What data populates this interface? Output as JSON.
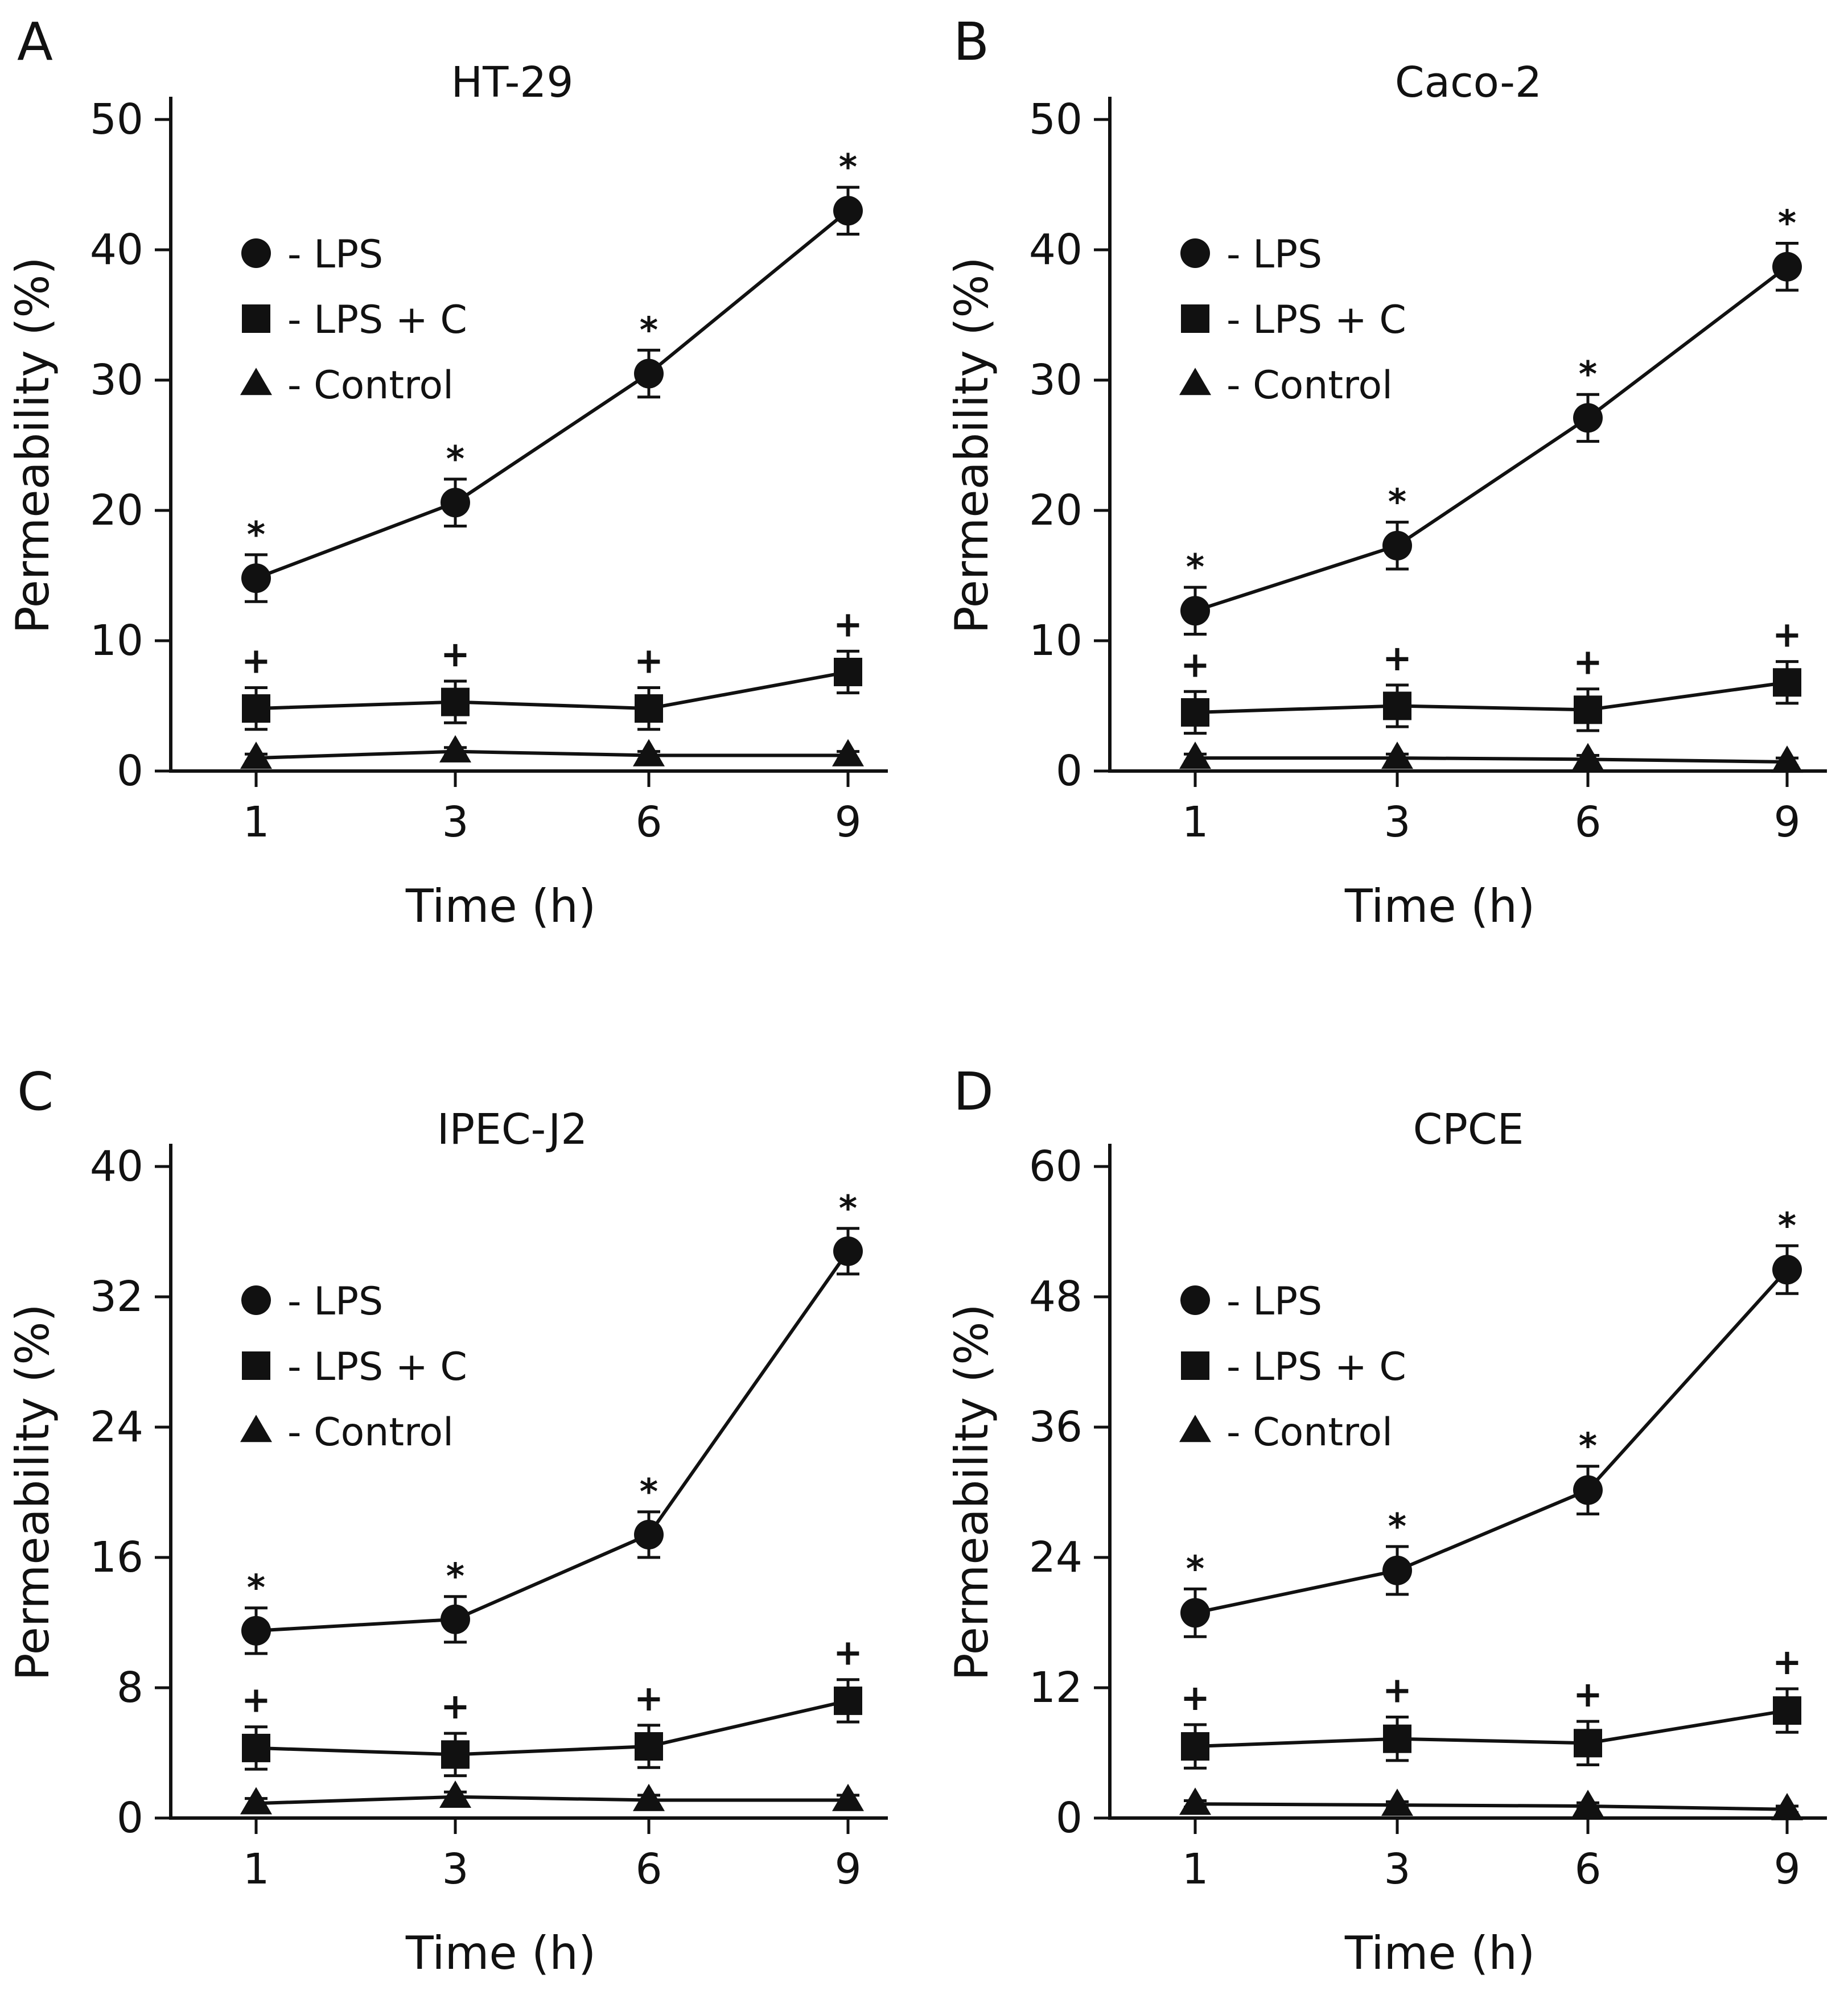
{
  "figure": {
    "panels": [
      "A",
      "B",
      "C",
      "D"
    ]
  },
  "chart_data": [
    {
      "panel": "A",
      "type": "line",
      "title": "HT-29",
      "xlabel": "Time (h)",
      "ylabel": "Permeability (%)",
      "categories": [
        "1",
        "3",
        "6",
        "9"
      ],
      "ylim": [
        0,
        50
      ],
      "yticks": [
        "0",
        "10",
        "20",
        "30",
        "40",
        "50"
      ],
      "legend_position": "upper-left",
      "series": [
        {
          "name": "- LPS",
          "marker": "circle",
          "values": [
            14.8,
            20.6,
            30.5,
            43.0
          ],
          "errors": [
            1.8,
            1.8,
            1.8,
            1.8
          ],
          "marks": [
            "*",
            "*",
            "*",
            "*"
          ]
        },
        {
          "name": "- LPS + C",
          "marker": "square",
          "values": [
            4.8,
            5.3,
            4.8,
            7.6
          ],
          "errors": [
            1.6,
            1.6,
            1.6,
            1.6
          ],
          "marks": [
            "+",
            "+",
            "+",
            "+"
          ]
        },
        {
          "name": "- Control",
          "marker": "triangle",
          "values": [
            1.0,
            1.5,
            1.2,
            1.2
          ],
          "errors": [
            0.3,
            0.3,
            0.3,
            0.3
          ],
          "marks": []
        }
      ]
    },
    {
      "panel": "B",
      "type": "line",
      "title": "Caco-2",
      "xlabel": "Time (h)",
      "ylabel": "Permeability (%)",
      "categories": [
        "1",
        "3",
        "6",
        "9"
      ],
      "ylim": [
        0,
        50
      ],
      "yticks": [
        "0",
        "10",
        "20",
        "30",
        "40",
        "50"
      ],
      "legend_position": "upper-left",
      "series": [
        {
          "name": "- LPS",
          "marker": "circle",
          "values": [
            12.3,
            17.3,
            27.1,
            38.7
          ],
          "errors": [
            1.8,
            1.8,
            1.8,
            1.8
          ],
          "marks": [
            "*",
            "*",
            "*",
            "*"
          ]
        },
        {
          "name": "- LPS + C",
          "marker": "square",
          "values": [
            4.5,
            5.0,
            4.7,
            6.8
          ],
          "errors": [
            1.6,
            1.6,
            1.6,
            1.6
          ],
          "marks": [
            "+",
            "+",
            "+",
            "+"
          ]
        },
        {
          "name": "- Control",
          "marker": "triangle",
          "values": [
            1.0,
            1.0,
            0.9,
            0.7
          ],
          "errors": [
            0.3,
            0.3,
            0.3,
            0.3
          ],
          "marks": []
        }
      ]
    },
    {
      "panel": "C",
      "type": "line",
      "title": "IPEC-J2",
      "xlabel": "Time (h)",
      "ylabel": "Permeability (%)",
      "categories": [
        "1",
        "3",
        "6",
        "9"
      ],
      "ylim": [
        0,
        40
      ],
      "yticks": [
        "0",
        "8",
        "16",
        "24",
        "32",
        "40"
      ],
      "legend_position": "upper-left",
      "series": [
        {
          "name": "- LPS",
          "marker": "circle",
          "values": [
            11.5,
            12.2,
            17.4,
            34.8
          ],
          "errors": [
            1.4,
            1.4,
            1.4,
            1.4
          ],
          "marks": [
            "*",
            "*",
            "*",
            "*"
          ]
        },
        {
          "name": "- LPS + C",
          "marker": "square",
          "values": [
            4.3,
            3.9,
            4.4,
            7.2
          ],
          "errors": [
            1.3,
            1.3,
            1.3,
            1.3
          ],
          "marks": [
            "+",
            "+",
            "+",
            "+"
          ]
        },
        {
          "name": "- Control",
          "marker": "triangle",
          "values": [
            0.9,
            1.3,
            1.1,
            1.1
          ],
          "errors": [
            0.3,
            0.3,
            0.3,
            0.3
          ],
          "marks": []
        }
      ]
    },
    {
      "panel": "D",
      "type": "line",
      "title": "CPCE",
      "xlabel": "Time (h)",
      "ylabel": "Permeability (%)",
      "categories": [
        "1",
        "3",
        "6",
        "9"
      ],
      "ylim": [
        0,
        60
      ],
      "yticks": [
        "0",
        "12",
        "24",
        "36",
        "48",
        "60"
      ],
      "legend_position": "upper-left",
      "series": [
        {
          "name": "- LPS",
          "marker": "circle",
          "values": [
            18.9,
            22.8,
            30.2,
            50.5
          ],
          "errors": [
            2.2,
            2.2,
            2.2,
            2.2
          ],
          "marks": [
            "*",
            "*",
            "*",
            "*"
          ]
        },
        {
          "name": "- LPS + C",
          "marker": "square",
          "values": [
            6.6,
            7.3,
            6.9,
            9.9
          ],
          "errors": [
            2.0,
            2.0,
            2.0,
            2.0
          ],
          "marks": [
            "+",
            "+",
            "+",
            "+"
          ]
        },
        {
          "name": "- Control",
          "marker": "triangle",
          "values": [
            1.3,
            1.2,
            1.1,
            0.8
          ],
          "errors": [
            0.3,
            0.3,
            0.3,
            0.3
          ],
          "marks": []
        }
      ]
    }
  ]
}
